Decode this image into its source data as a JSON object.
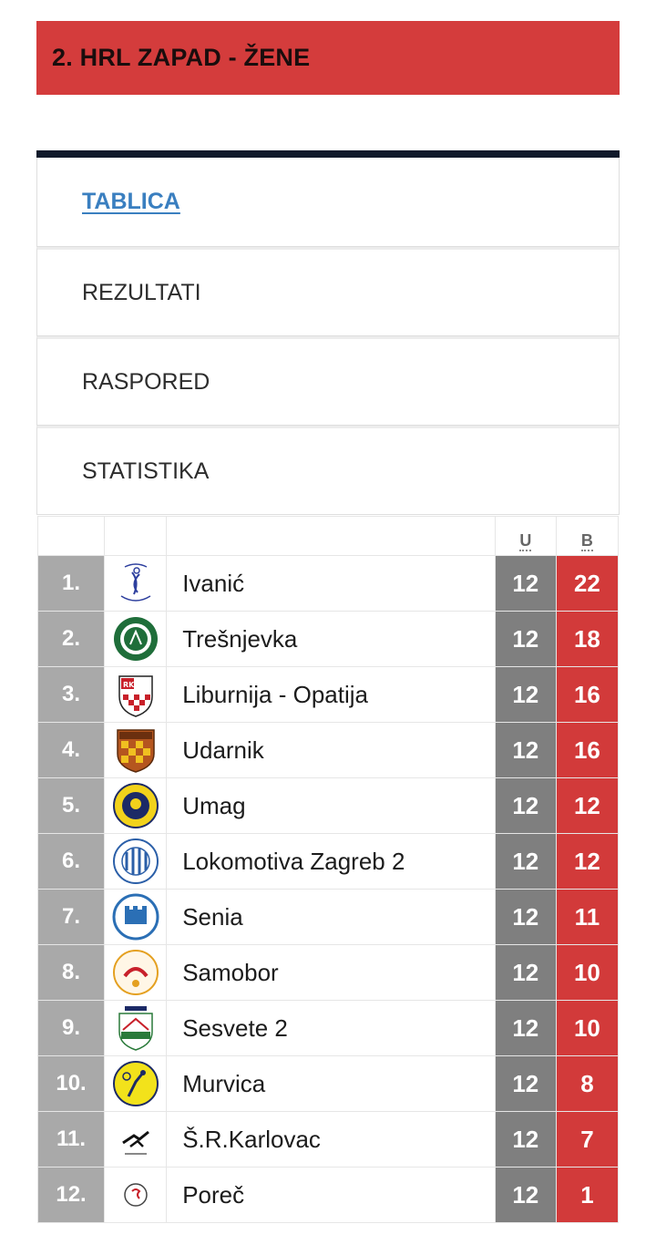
{
  "header": {
    "title": "2. HRL ZAPAD - ŽENE"
  },
  "colors": {
    "header_bg": "#d43c3c",
    "link_blue": "#3a7fc0",
    "rank_gray": "#a9a9a9",
    "played_gray": "#7f7f7f",
    "points_red": "#d23a3a"
  },
  "tabs": [
    {
      "label": "TABLICA",
      "active": true
    },
    {
      "label": "REZULTATI",
      "active": false
    },
    {
      "label": "RASPORED",
      "active": false
    },
    {
      "label": "STATISTIKA",
      "active": false
    }
  ],
  "table": {
    "headers": {
      "played": "U",
      "points": "B"
    },
    "rows": [
      {
        "rank": "1.",
        "team": "Ivanić",
        "played": "12",
        "points": "22",
        "logo": "ivanic-logo"
      },
      {
        "rank": "2.",
        "team": "Trešnjevka",
        "played": "12",
        "points": "18",
        "logo": "tresnjevka-logo"
      },
      {
        "rank": "3.",
        "team": "Liburnija - Opatija",
        "played": "12",
        "points": "16",
        "logo": "liburnija-logo"
      },
      {
        "rank": "4.",
        "team": "Udarnik",
        "played": "12",
        "points": "16",
        "logo": "udarnik-logo"
      },
      {
        "rank": "5.",
        "team": "Umag",
        "played": "12",
        "points": "12",
        "logo": "umag-logo"
      },
      {
        "rank": "6.",
        "team": "Lokomotiva Zagreb 2",
        "played": "12",
        "points": "12",
        "logo": "lokomotiva-logo"
      },
      {
        "rank": "7.",
        "team": "Senia",
        "played": "12",
        "points": "11",
        "logo": "senia-logo"
      },
      {
        "rank": "8.",
        "team": "Samobor",
        "played": "12",
        "points": "10",
        "logo": "samobor-logo"
      },
      {
        "rank": "9.",
        "team": "Sesvete 2",
        "played": "12",
        "points": "10",
        "logo": "sesvete-logo"
      },
      {
        "rank": "10.",
        "team": "Murvica",
        "played": "12",
        "points": "8",
        "logo": "murvica-logo"
      },
      {
        "rank": "11.",
        "team": "Š.R.Karlovac",
        "played": "12",
        "points": "7",
        "logo": "karlovac-logo"
      },
      {
        "rank": "12.",
        "team": "Poreč",
        "played": "12",
        "points": "1",
        "logo": "porec-logo"
      }
    ]
  }
}
